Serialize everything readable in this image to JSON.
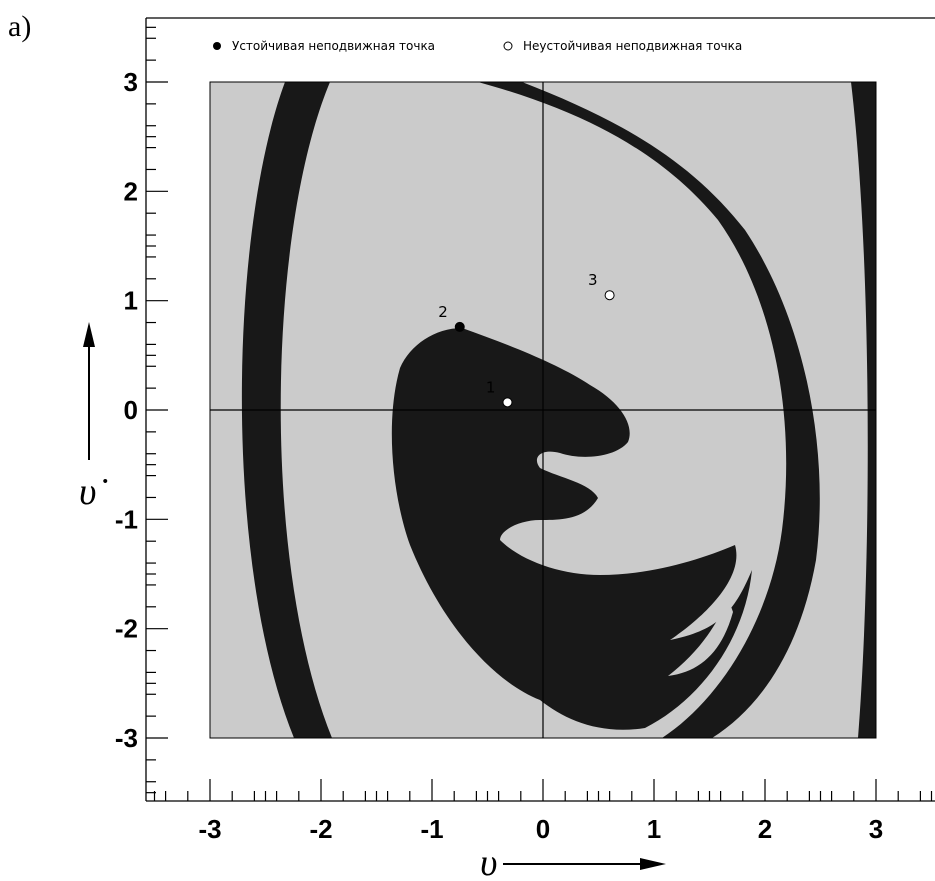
{
  "panel_label": "a)",
  "chart_data": {
    "type": "scatter",
    "title": "",
    "xlabel": "υ",
    "ylabel": "υ̇",
    "xlim": [
      -3.6,
      3.6
    ],
    "ylim": [
      -3.6,
      3.6
    ],
    "region": {
      "x": [
        -3,
        3
      ],
      "y": [
        -3,
        3
      ]
    },
    "x_ticks": [
      -3,
      -2,
      -1,
      0,
      1,
      2,
      3
    ],
    "y_ticks": [
      -3,
      -2,
      -1,
      0,
      1,
      2,
      3
    ],
    "x_tick_labels": [
      "-3",
      "-2",
      "-1",
      "0",
      "1",
      "2",
      "3"
    ],
    "y_tick_labels": [
      "-3",
      "-2",
      "-1",
      "0",
      "1",
      "2",
      "3"
    ],
    "colors": {
      "background_basin": "#cbcbcb",
      "attractor_basin": "#181818",
      "axes": "#000000"
    },
    "legend": {
      "placement": "top",
      "entries": [
        {
          "label": "Устойчивая неподвижная точка",
          "marker": "filled-circle"
        },
        {
          "label": "Неустойчивая неподвижная точка",
          "marker": "open-circle"
        }
      ]
    },
    "series": [
      {
        "name": "Устойчивая неподвижная точка",
        "points": [
          {
            "x": -0.75,
            "y": 0.76,
            "label": "2"
          }
        ]
      },
      {
        "name": "Неустойчивая неподвижная точка",
        "points": [
          {
            "x": -0.32,
            "y": 0.07,
            "label": "1"
          },
          {
            "x": 0.6,
            "y": 1.05,
            "label": "3"
          }
        ]
      }
    ]
  }
}
